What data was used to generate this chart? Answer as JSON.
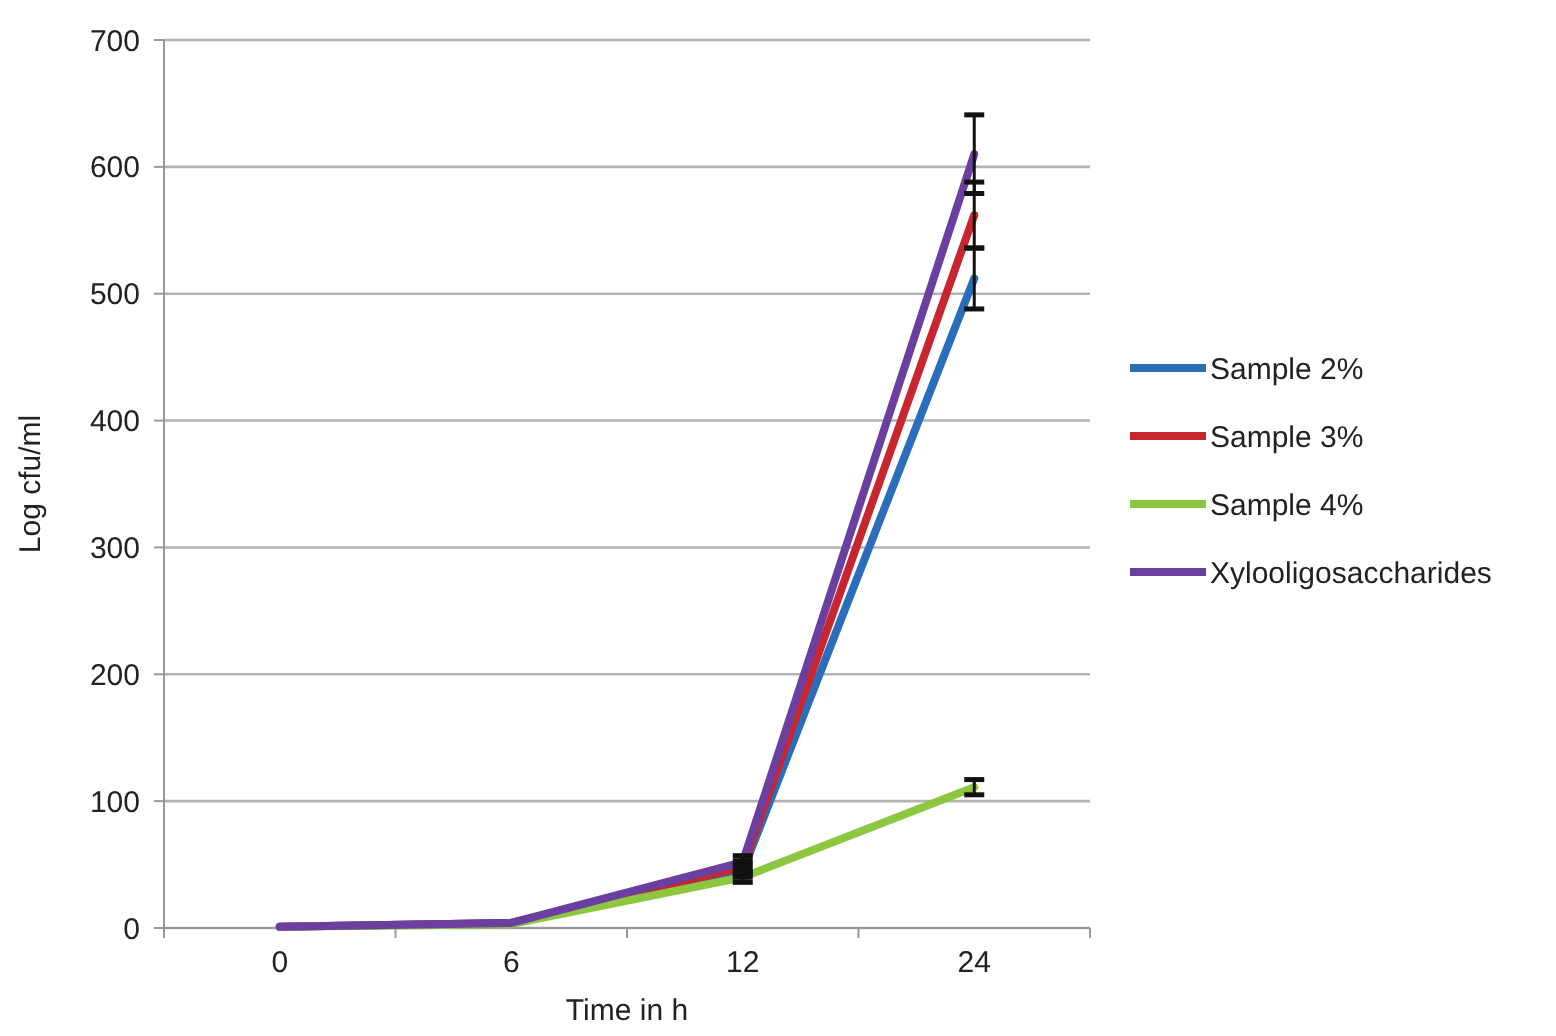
{
  "chart_data": {
    "type": "line",
    "xlabel": "Time in h",
    "ylabel": "Log cfu/ml",
    "categories": [
      "0",
      "6",
      "12",
      "24"
    ],
    "series": [
      {
        "name": "Sample 2%",
        "color": "#2a6ebb",
        "values": [
          1,
          4,
          45,
          512
        ],
        "errors": [
          null,
          null,
          5,
          24
        ]
      },
      {
        "name": "Sample 3%",
        "color": "#c8262e",
        "values": [
          1,
          4,
          48,
          562
        ],
        "errors": [
          null,
          null,
          5,
          26
        ]
      },
      {
        "name": "Sample 4%",
        "color": "#8dc63f",
        "values": [
          1,
          3,
          40,
          111
        ],
        "errors": [
          null,
          null,
          4,
          6
        ]
      },
      {
        "name": "Xylooligosaccharides",
        "color": "#6b3fa0",
        "values": [
          1,
          4,
          52,
          610
        ],
        "errors": [
          null,
          null,
          5,
          31
        ]
      }
    ],
    "ylim": [
      0,
      700
    ],
    "yticks": [
      0,
      100,
      200,
      300,
      400,
      500,
      600,
      700
    ],
    "grid": "y",
    "legend": "right",
    "marker": "none",
    "line_style": "solid"
  }
}
